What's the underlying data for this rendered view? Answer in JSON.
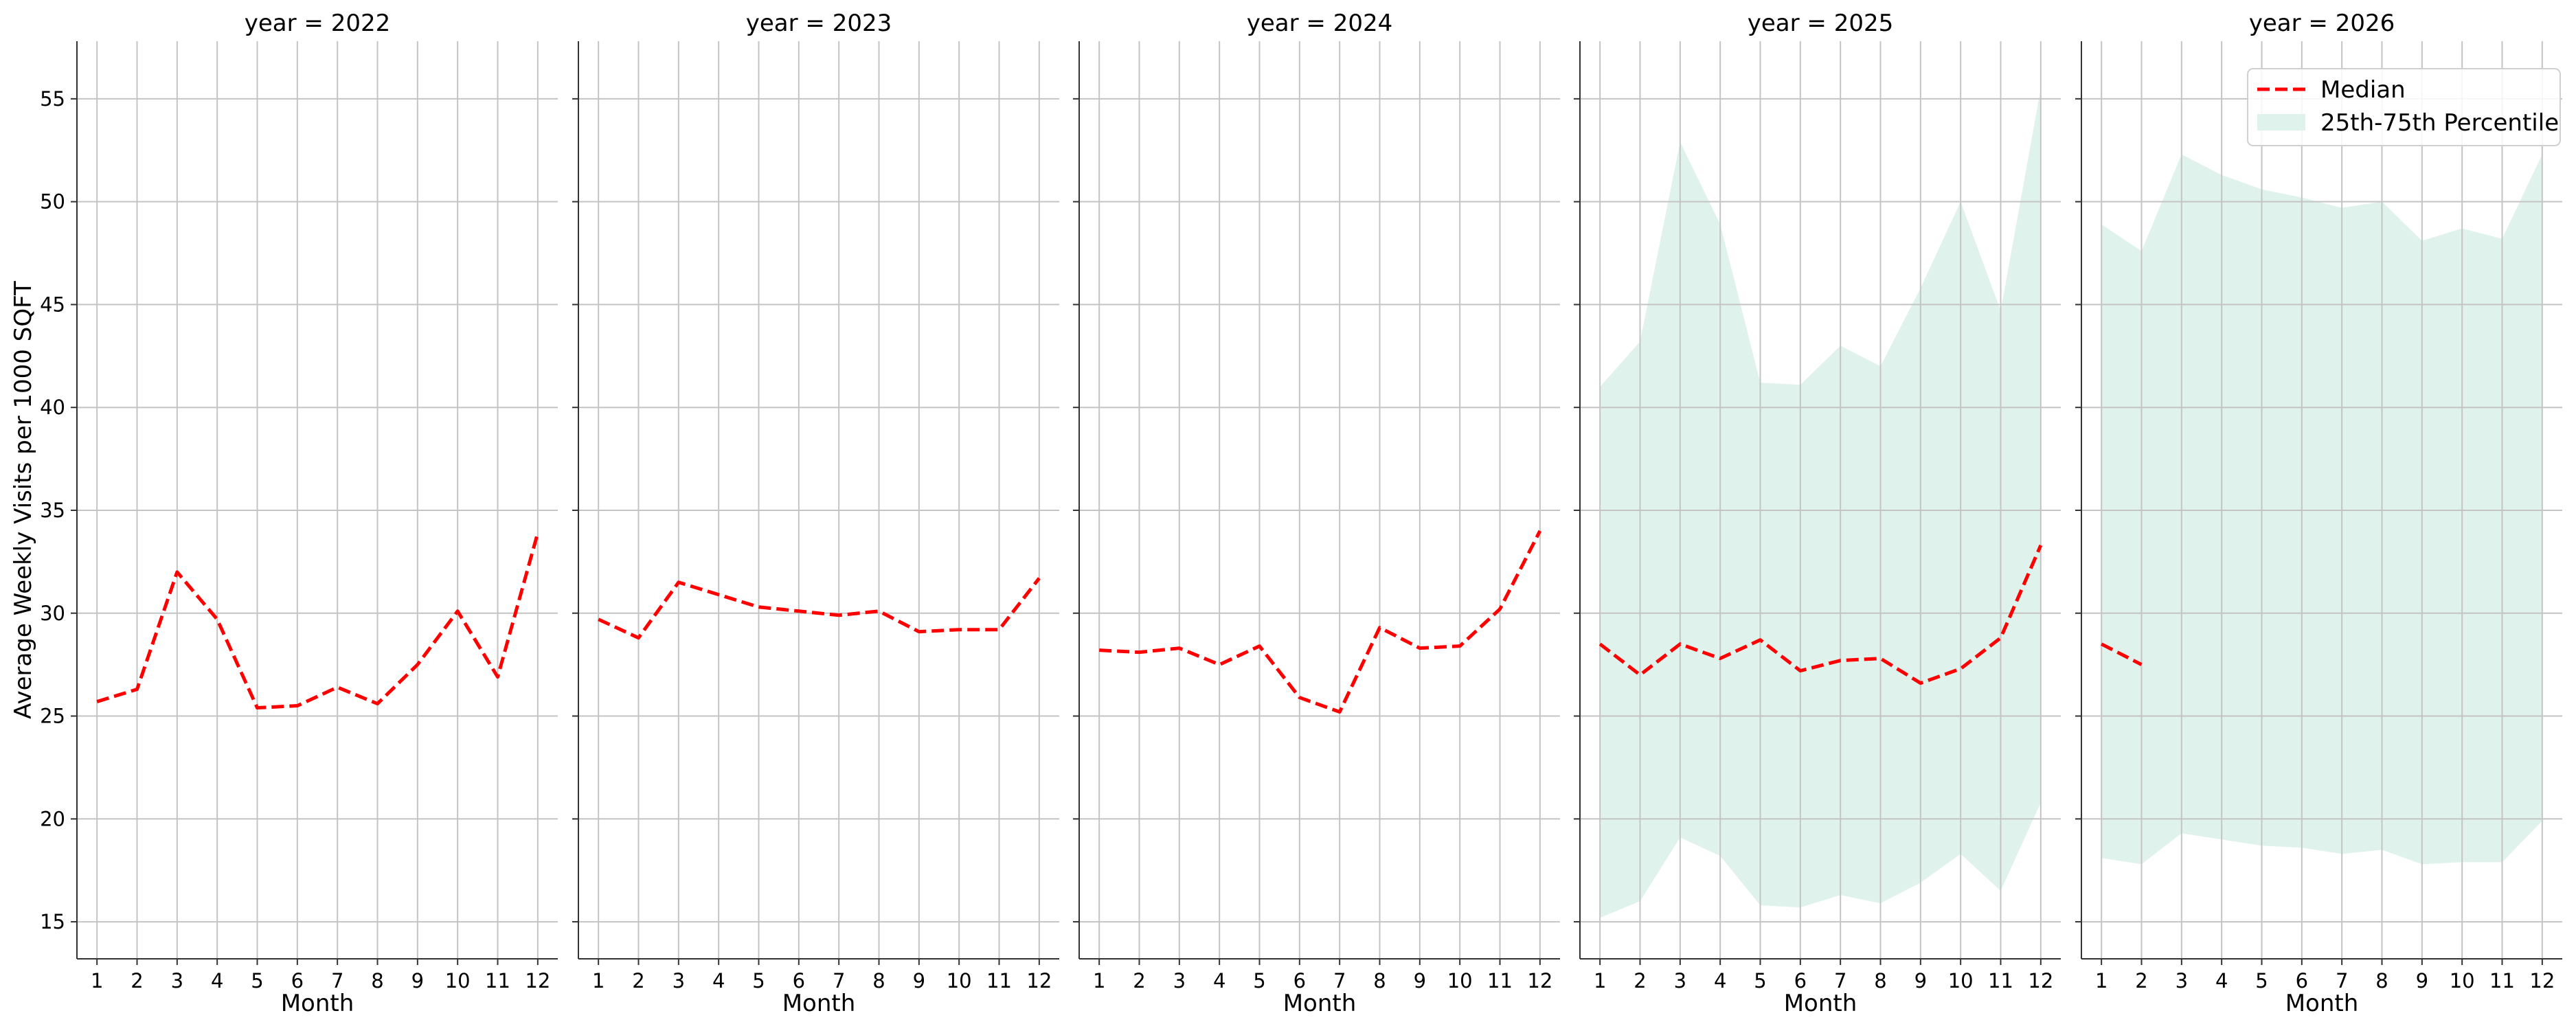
{
  "chart_data": {
    "type": "line",
    "facet_variable": "year",
    "ylabel": "Average Weekly Visits per 1000 SQFT",
    "xlabel": "Month",
    "xticks": [
      1,
      2,
      3,
      4,
      5,
      6,
      7,
      8,
      9,
      10,
      11,
      12
    ],
    "yticks": [
      15,
      20,
      25,
      30,
      35,
      40,
      45,
      50,
      55
    ],
    "ylim": [
      13.2,
      57.8
    ],
    "xlim": [
      0.5,
      12.5
    ],
    "grid": true,
    "legend": {
      "placement": "upper right of last panel",
      "entries": [
        "Median",
        "25th-75th Percentile"
      ]
    },
    "colors": {
      "median": "#ff0000",
      "band": "#dff2ec",
      "grid": "#c4c4c4",
      "axis": "#333333"
    },
    "panels": [
      {
        "title": "year = 2022",
        "median": [
          {
            "x": 1,
            "y": 25.7
          },
          {
            "x": 2,
            "y": 26.3
          },
          {
            "x": 3,
            "y": 32.0
          },
          {
            "x": 4,
            "y": 29.7
          },
          {
            "x": 5,
            "y": 25.4
          },
          {
            "x": 6,
            "y": 25.5
          },
          {
            "x": 7,
            "y": 26.4
          },
          {
            "x": 8,
            "y": 25.6
          },
          {
            "x": 9,
            "y": 27.5
          },
          {
            "x": 10,
            "y": 30.1
          },
          {
            "x": 11,
            "y": 26.9
          },
          {
            "x": 12,
            "y": 33.9
          }
        ],
        "p25": [],
        "p75": []
      },
      {
        "title": "year = 2023",
        "median": [
          {
            "x": 1,
            "y": 29.7
          },
          {
            "x": 2,
            "y": 28.8
          },
          {
            "x": 3,
            "y": 31.5
          },
          {
            "x": 4,
            "y": 30.9
          },
          {
            "x": 5,
            "y": 30.3
          },
          {
            "x": 6,
            "y": 30.1
          },
          {
            "x": 7,
            "y": 29.9
          },
          {
            "x": 8,
            "y": 30.1
          },
          {
            "x": 9,
            "y": 29.1
          },
          {
            "x": 10,
            "y": 29.2
          },
          {
            "x": 11,
            "y": 29.2
          },
          {
            "x": 12,
            "y": 31.7
          }
        ],
        "p25": [],
        "p75": []
      },
      {
        "title": "year = 2024",
        "median": [
          {
            "x": 1,
            "y": 28.2
          },
          {
            "x": 2,
            "y": 28.1
          },
          {
            "x": 3,
            "y": 28.3
          },
          {
            "x": 4,
            "y": 27.5
          },
          {
            "x": 5,
            "y": 28.4
          },
          {
            "x": 6,
            "y": 25.9
          },
          {
            "x": 7,
            "y": 25.2
          },
          {
            "x": 8,
            "y": 29.3
          },
          {
            "x": 9,
            "y": 28.3
          },
          {
            "x": 10,
            "y": 28.4
          },
          {
            "x": 11,
            "y": 30.2
          },
          {
            "x": 12,
            "y": 34.0
          }
        ],
        "p25": [],
        "p75": []
      },
      {
        "title": "year = 2025",
        "median": [
          {
            "x": 1,
            "y": 28.5
          },
          {
            "x": 2,
            "y": 27.0
          },
          {
            "x": 3,
            "y": 28.5
          },
          {
            "x": 4,
            "y": 27.8
          },
          {
            "x": 5,
            "y": 28.7
          },
          {
            "x": 6,
            "y": 27.2
          },
          {
            "x": 7,
            "y": 27.7
          },
          {
            "x": 8,
            "y": 27.8
          },
          {
            "x": 9,
            "y": 26.6
          },
          {
            "x": 10,
            "y": 27.3
          },
          {
            "x": 11,
            "y": 28.8
          },
          {
            "x": 12,
            "y": 33.3
          }
        ],
        "p25": [
          {
            "x": 1,
            "y": 15.2
          },
          {
            "x": 2,
            "y": 16.0
          },
          {
            "x": 3,
            "y": 19.1
          },
          {
            "x": 4,
            "y": 18.2
          },
          {
            "x": 5,
            "y": 15.8
          },
          {
            "x": 6,
            "y": 15.7
          },
          {
            "x": 7,
            "y": 16.3
          },
          {
            "x": 8,
            "y": 15.9
          },
          {
            "x": 9,
            "y": 16.9
          },
          {
            "x": 10,
            "y": 18.3
          },
          {
            "x": 11,
            "y": 16.5
          },
          {
            "x": 12,
            "y": 20.8
          }
        ],
        "p75": [
          {
            "x": 1,
            "y": 41.0
          },
          {
            "x": 2,
            "y": 43.2
          },
          {
            "x": 3,
            "y": 52.9
          },
          {
            "x": 4,
            "y": 48.9
          },
          {
            "x": 5,
            "y": 41.2
          },
          {
            "x": 6,
            "y": 41.1
          },
          {
            "x": 7,
            "y": 43.0
          },
          {
            "x": 8,
            "y": 42.0
          },
          {
            "x": 9,
            "y": 45.8
          },
          {
            "x": 10,
            "y": 50.0
          },
          {
            "x": 11,
            "y": 44.7
          },
          {
            "x": 12,
            "y": 55.5
          }
        ]
      },
      {
        "title": "year = 2026",
        "median": [
          {
            "x": 1,
            "y": 28.5
          },
          {
            "x": 2,
            "y": 27.5
          }
        ],
        "p25": [
          {
            "x": 1,
            "y": 18.1
          },
          {
            "x": 2,
            "y": 17.8
          },
          {
            "x": 3,
            "y": 19.3
          },
          {
            "x": 4,
            "y": 19.0
          },
          {
            "x": 5,
            "y": 18.7
          },
          {
            "x": 6,
            "y": 18.6
          },
          {
            "x": 7,
            "y": 18.3
          },
          {
            "x": 8,
            "y": 18.5
          },
          {
            "x": 9,
            "y": 17.8
          },
          {
            "x": 10,
            "y": 17.9
          },
          {
            "x": 11,
            "y": 17.9
          },
          {
            "x": 12,
            "y": 19.9
          }
        ],
        "p75": [
          {
            "x": 1,
            "y": 48.9
          },
          {
            "x": 2,
            "y": 47.6
          },
          {
            "x": 3,
            "y": 52.3
          },
          {
            "x": 4,
            "y": 51.3
          },
          {
            "x": 5,
            "y": 50.6
          },
          {
            "x": 6,
            "y": 50.2
          },
          {
            "x": 7,
            "y": 49.7
          },
          {
            "x": 8,
            "y": 50.0
          },
          {
            "x": 9,
            "y": 48.1
          },
          {
            "x": 10,
            "y": 48.7
          },
          {
            "x": 11,
            "y": 48.2
          },
          {
            "x": 12,
            "y": 52.3
          }
        ]
      }
    ]
  }
}
